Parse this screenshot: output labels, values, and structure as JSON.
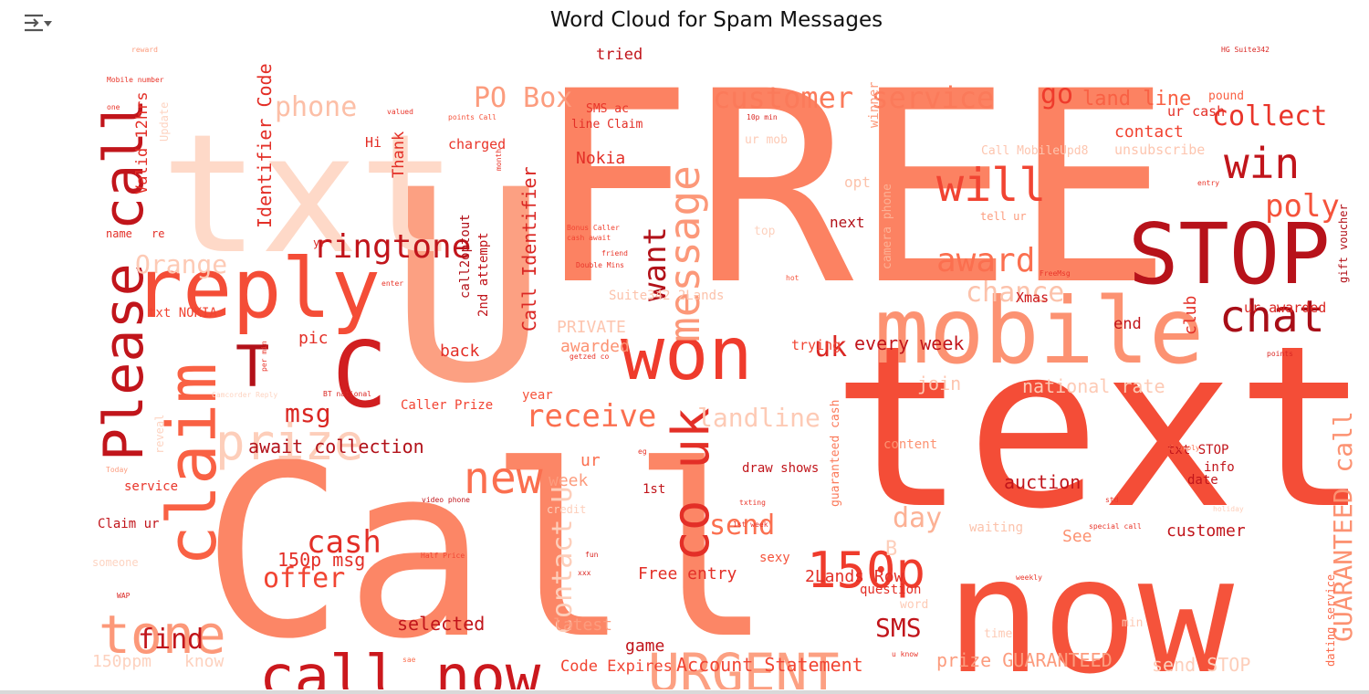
{
  "toolbar": {
    "icon": "output-collapse-icon"
  },
  "chart_data": {
    "type": "wordcloud",
    "title": "Word Cloud for Spam Messages",
    "colormap": "Reds",
    "background": "#ffffff",
    "words": [
      {
        "text": "FREE",
        "w": 1.0
      },
      {
        "text": "text",
        "w": 0.86
      },
      {
        "text": "Call",
        "w": 0.88
      },
      {
        "text": "now",
        "w": 0.78
      },
      {
        "text": "U",
        "w": 0.74
      },
      {
        "text": "txt",
        "w": 0.7
      },
      {
        "text": "mobile",
        "w": 0.44
      },
      {
        "text": "STOP",
        "w": 0.4
      },
      {
        "text": "won",
        "w": 0.4
      },
      {
        "text": "reply",
        "w": 0.42
      },
      {
        "text": "C",
        "w": 0.4
      },
      {
        "text": "claim",
        "w": 0.36
      },
      {
        "text": "Please call",
        "w": 0.32
      },
      {
        "text": "call now",
        "w": 0.36
      },
      {
        "text": "co uk",
        "w": 0.34
      },
      {
        "text": "URGENT",
        "w": 0.32
      },
      {
        "text": "tone",
        "w": 0.32
      },
      {
        "text": "T",
        "w": 0.34
      },
      {
        "text": "150p",
        "w": 0.3
      },
      {
        "text": "chat",
        "w": 0.28
      },
      {
        "text": "will",
        "w": 0.3
      },
      {
        "text": "win",
        "w": 0.28
      },
      {
        "text": "message",
        "w": 0.28
      },
      {
        "text": "new",
        "w": 0.28
      },
      {
        "text": "prize",
        "w": 0.28
      },
      {
        "text": "receive",
        "w": 0.2
      },
      {
        "text": "ringtone",
        "w": 0.2
      },
      {
        "text": "award",
        "w": 0.2
      },
      {
        "text": "cash",
        "w": 0.2
      },
      {
        "text": "offer",
        "w": 0.18
      },
      {
        "text": "poly",
        "w": 0.18
      },
      {
        "text": "send",
        "w": 0.18
      },
      {
        "text": "collect",
        "w": 0.18
      },
      {
        "text": "customer service",
        "w": 0.18
      },
      {
        "text": "PO Box",
        "w": 0.16
      },
      {
        "text": "phone",
        "w": 0.16
      },
      {
        "text": "find",
        "w": 0.16
      },
      {
        "text": "chance",
        "w": 0.16
      },
      {
        "text": "landline",
        "w": 0.16
      },
      {
        "text": "day",
        "w": 0.16
      },
      {
        "text": "want",
        "w": 0.18
      },
      {
        "text": "contact U",
        "w": 0.14
      },
      {
        "text": "Orange",
        "w": 0.16
      },
      {
        "text": "GUARANTEED call",
        "w": 0.14
      },
      {
        "text": "SMS",
        "w": 0.14
      },
      {
        "text": "go",
        "w": 0.16
      },
      {
        "text": "msg",
        "w": 0.14
      },
      {
        "text": "uk",
        "w": 0.14
      },
      {
        "text": "B",
        "w": 0.12
      },
      {
        "text": "land line",
        "w": 0.12
      },
      {
        "text": "every week",
        "w": 0.1
      },
      {
        "text": "Identifier Code",
        "w": 0.1
      },
      {
        "text": "Call Identifier",
        "w": 0.1
      },
      {
        "text": "await collection",
        "w": 0.1
      },
      {
        "text": "national rate",
        "w": 0.1
      },
      {
        "text": "150p msg",
        "w": 0.1
      },
      {
        "text": "selected",
        "w": 0.1
      },
      {
        "text": "auction",
        "w": 0.1
      },
      {
        "text": "Account Statement",
        "w": 0.1
      },
      {
        "text": "prize GUARANTEED",
        "w": 0.1
      },
      {
        "text": "send STOP",
        "w": 0.1
      },
      {
        "text": "150ppm",
        "w": 0.09
      },
      {
        "text": "know",
        "w": 0.09
      },
      {
        "text": "latest",
        "w": 0.09
      },
      {
        "text": "game",
        "w": 0.09
      },
      {
        "text": "Code Expires",
        "w": 0.09
      },
      {
        "text": "customer",
        "w": 0.09
      },
      {
        "text": "Free entry",
        "w": 0.09
      },
      {
        "text": "2Lands Row",
        "w": 0.09
      },
      {
        "text": "See",
        "w": 0.09
      },
      {
        "text": "week",
        "w": 0.09
      },
      {
        "text": "ur",
        "w": 0.09
      },
      {
        "text": "awarded",
        "w": 0.08
      },
      {
        "text": "PRIVATE",
        "w": 0.08
      },
      {
        "text": "back",
        "w": 0.08
      },
      {
        "text": "pic",
        "w": 0.08
      },
      {
        "text": "Valid 12hrs",
        "w": 0.08
      },
      {
        "text": "Nokia",
        "w": 0.08
      },
      {
        "text": "contact",
        "w": 0.08
      },
      {
        "text": "Thank",
        "w": 0.08
      },
      {
        "text": "join",
        "w": 0.08
      },
      {
        "text": "club",
        "w": 0.08
      },
      {
        "text": "end",
        "w": 0.08
      },
      {
        "text": "next",
        "w": 0.07
      },
      {
        "text": "opt",
        "w": 0.07
      },
      {
        "text": "tried",
        "w": 0.07
      },
      {
        "text": "ur cash",
        "w": 0.07
      },
      {
        "text": "ur awarded",
        "w": 0.07
      },
      {
        "text": "unsubscribe",
        "w": 0.07
      },
      {
        "text": "charged",
        "w": 0.07
      },
      {
        "text": "Hi",
        "w": 0.07
      },
      {
        "text": "Xmas",
        "w": 0.07
      },
      {
        "text": "trying",
        "w": 0.07
      },
      {
        "text": "content",
        "w": 0.07
      },
      {
        "text": "txt STOP",
        "w": 0.07
      },
      {
        "text": "info",
        "w": 0.07
      },
      {
        "text": "date",
        "w": 0.07
      },
      {
        "text": "draw shows",
        "w": 0.07
      },
      {
        "text": "1st",
        "w": 0.07
      },
      {
        "text": "Caller Prize",
        "w": 0.06
      },
      {
        "text": "year",
        "w": 0.06
      },
      {
        "text": "service",
        "w": 0.06
      },
      {
        "text": "Claim ur",
        "w": 0.06
      },
      {
        "text": "sexy",
        "w": 0.06
      },
      {
        "text": "question",
        "w": 0.06
      },
      {
        "text": "waiting",
        "w": 0.06
      },
      {
        "text": "winner",
        "w": 0.06
      },
      {
        "text": "Suite342 2Lands",
        "w": 0.06
      },
      {
        "text": "2nd attempt",
        "w": 0.06
      },
      {
        "text": "call2optout",
        "w": 0.06
      },
      {
        "text": "txt NOKIA",
        "w": 0.06
      },
      {
        "text": "guaranteed cash",
        "w": 0.06
      },
      {
        "text": "dating service",
        "w": 0.06
      },
      {
        "text": "gift voucher",
        "w": 0.05
      },
      {
        "text": "camera phone",
        "w": 0.05
      },
      {
        "text": "tell ur",
        "w": 0.05
      },
      {
        "text": "pound",
        "w": 0.05
      },
      {
        "text": "SMS ac",
        "w": 0.05
      },
      {
        "text": "line Claim",
        "w": 0.05
      },
      {
        "text": "Call MobileUpd8",
        "w": 0.05
      },
      {
        "text": "ur mob",
        "w": 0.05
      },
      {
        "text": "top",
        "w": 0.05
      },
      {
        "text": "name",
        "w": 0.05
      },
      {
        "text": "re",
        "w": 0.05
      },
      {
        "text": "yr",
        "w": 0.05
      },
      {
        "text": "word",
        "w": 0.05
      },
      {
        "text": "time",
        "w": 0.05
      },
      {
        "text": "min",
        "w": 0.05
      },
      {
        "text": "credit",
        "w": 0.05
      },
      {
        "text": "someone",
        "w": 0.05
      },
      {
        "text": "Update",
        "w": 0.05
      },
      {
        "text": "reveal",
        "w": 0.05
      },
      {
        "text": "HG Suite342",
        "w": 0.03
      },
      {
        "text": "reward",
        "w": 0.03
      },
      {
        "text": "Mobile number",
        "w": 0.03
      },
      {
        "text": "valued",
        "w": 0.03
      },
      {
        "text": "points Call",
        "w": 0.03
      },
      {
        "text": "10p min",
        "w": 0.03
      },
      {
        "text": "Bonus Caller",
        "w": 0.03
      },
      {
        "text": "cash await",
        "w": 0.03
      },
      {
        "text": "friend",
        "w": 0.03
      },
      {
        "text": "Double Mins",
        "w": 0.03
      },
      {
        "text": "enter",
        "w": 0.03
      },
      {
        "text": "per min",
        "w": 0.03
      },
      {
        "text": "BT national",
        "w": 0.03
      },
      {
        "text": "Camcorder Reply",
        "w": 0.03
      },
      {
        "text": "video phone",
        "w": 0.03
      },
      {
        "text": "Half Price",
        "w": 0.03
      },
      {
        "text": "special call",
        "w": 0.03
      },
      {
        "text": "C apply",
        "w": 0.03
      },
      {
        "text": "1st week",
        "w": 0.03
      },
      {
        "text": "txting",
        "w": 0.03
      },
      {
        "text": "std",
        "w": 0.03
      },
      {
        "text": "weekly",
        "w": 0.03
      },
      {
        "text": "u know",
        "w": 0.03
      },
      {
        "text": "FreeMsg",
        "w": 0.03
      },
      {
        "text": "hot",
        "w": 0.03
      },
      {
        "text": "entry",
        "w": 0.03
      },
      {
        "text": "points",
        "w": 0.03
      },
      {
        "text": "fun",
        "w": 0.03
      },
      {
        "text": "xxx",
        "w": 0.03
      },
      {
        "text": "Today",
        "w": 0.03
      },
      {
        "text": "month",
        "w": 0.03
      },
      {
        "text": "one",
        "w": 0.03
      },
      {
        "text": "getzed co",
        "w": 0.03
      },
      {
        "text": "eg",
        "w": 0.03
      },
      {
        "text": "WAP",
        "w": 0.03
      },
      {
        "text": "holiday",
        "w": 0.03
      },
      {
        "text": "sae",
        "w": 0.03
      }
    ]
  }
}
